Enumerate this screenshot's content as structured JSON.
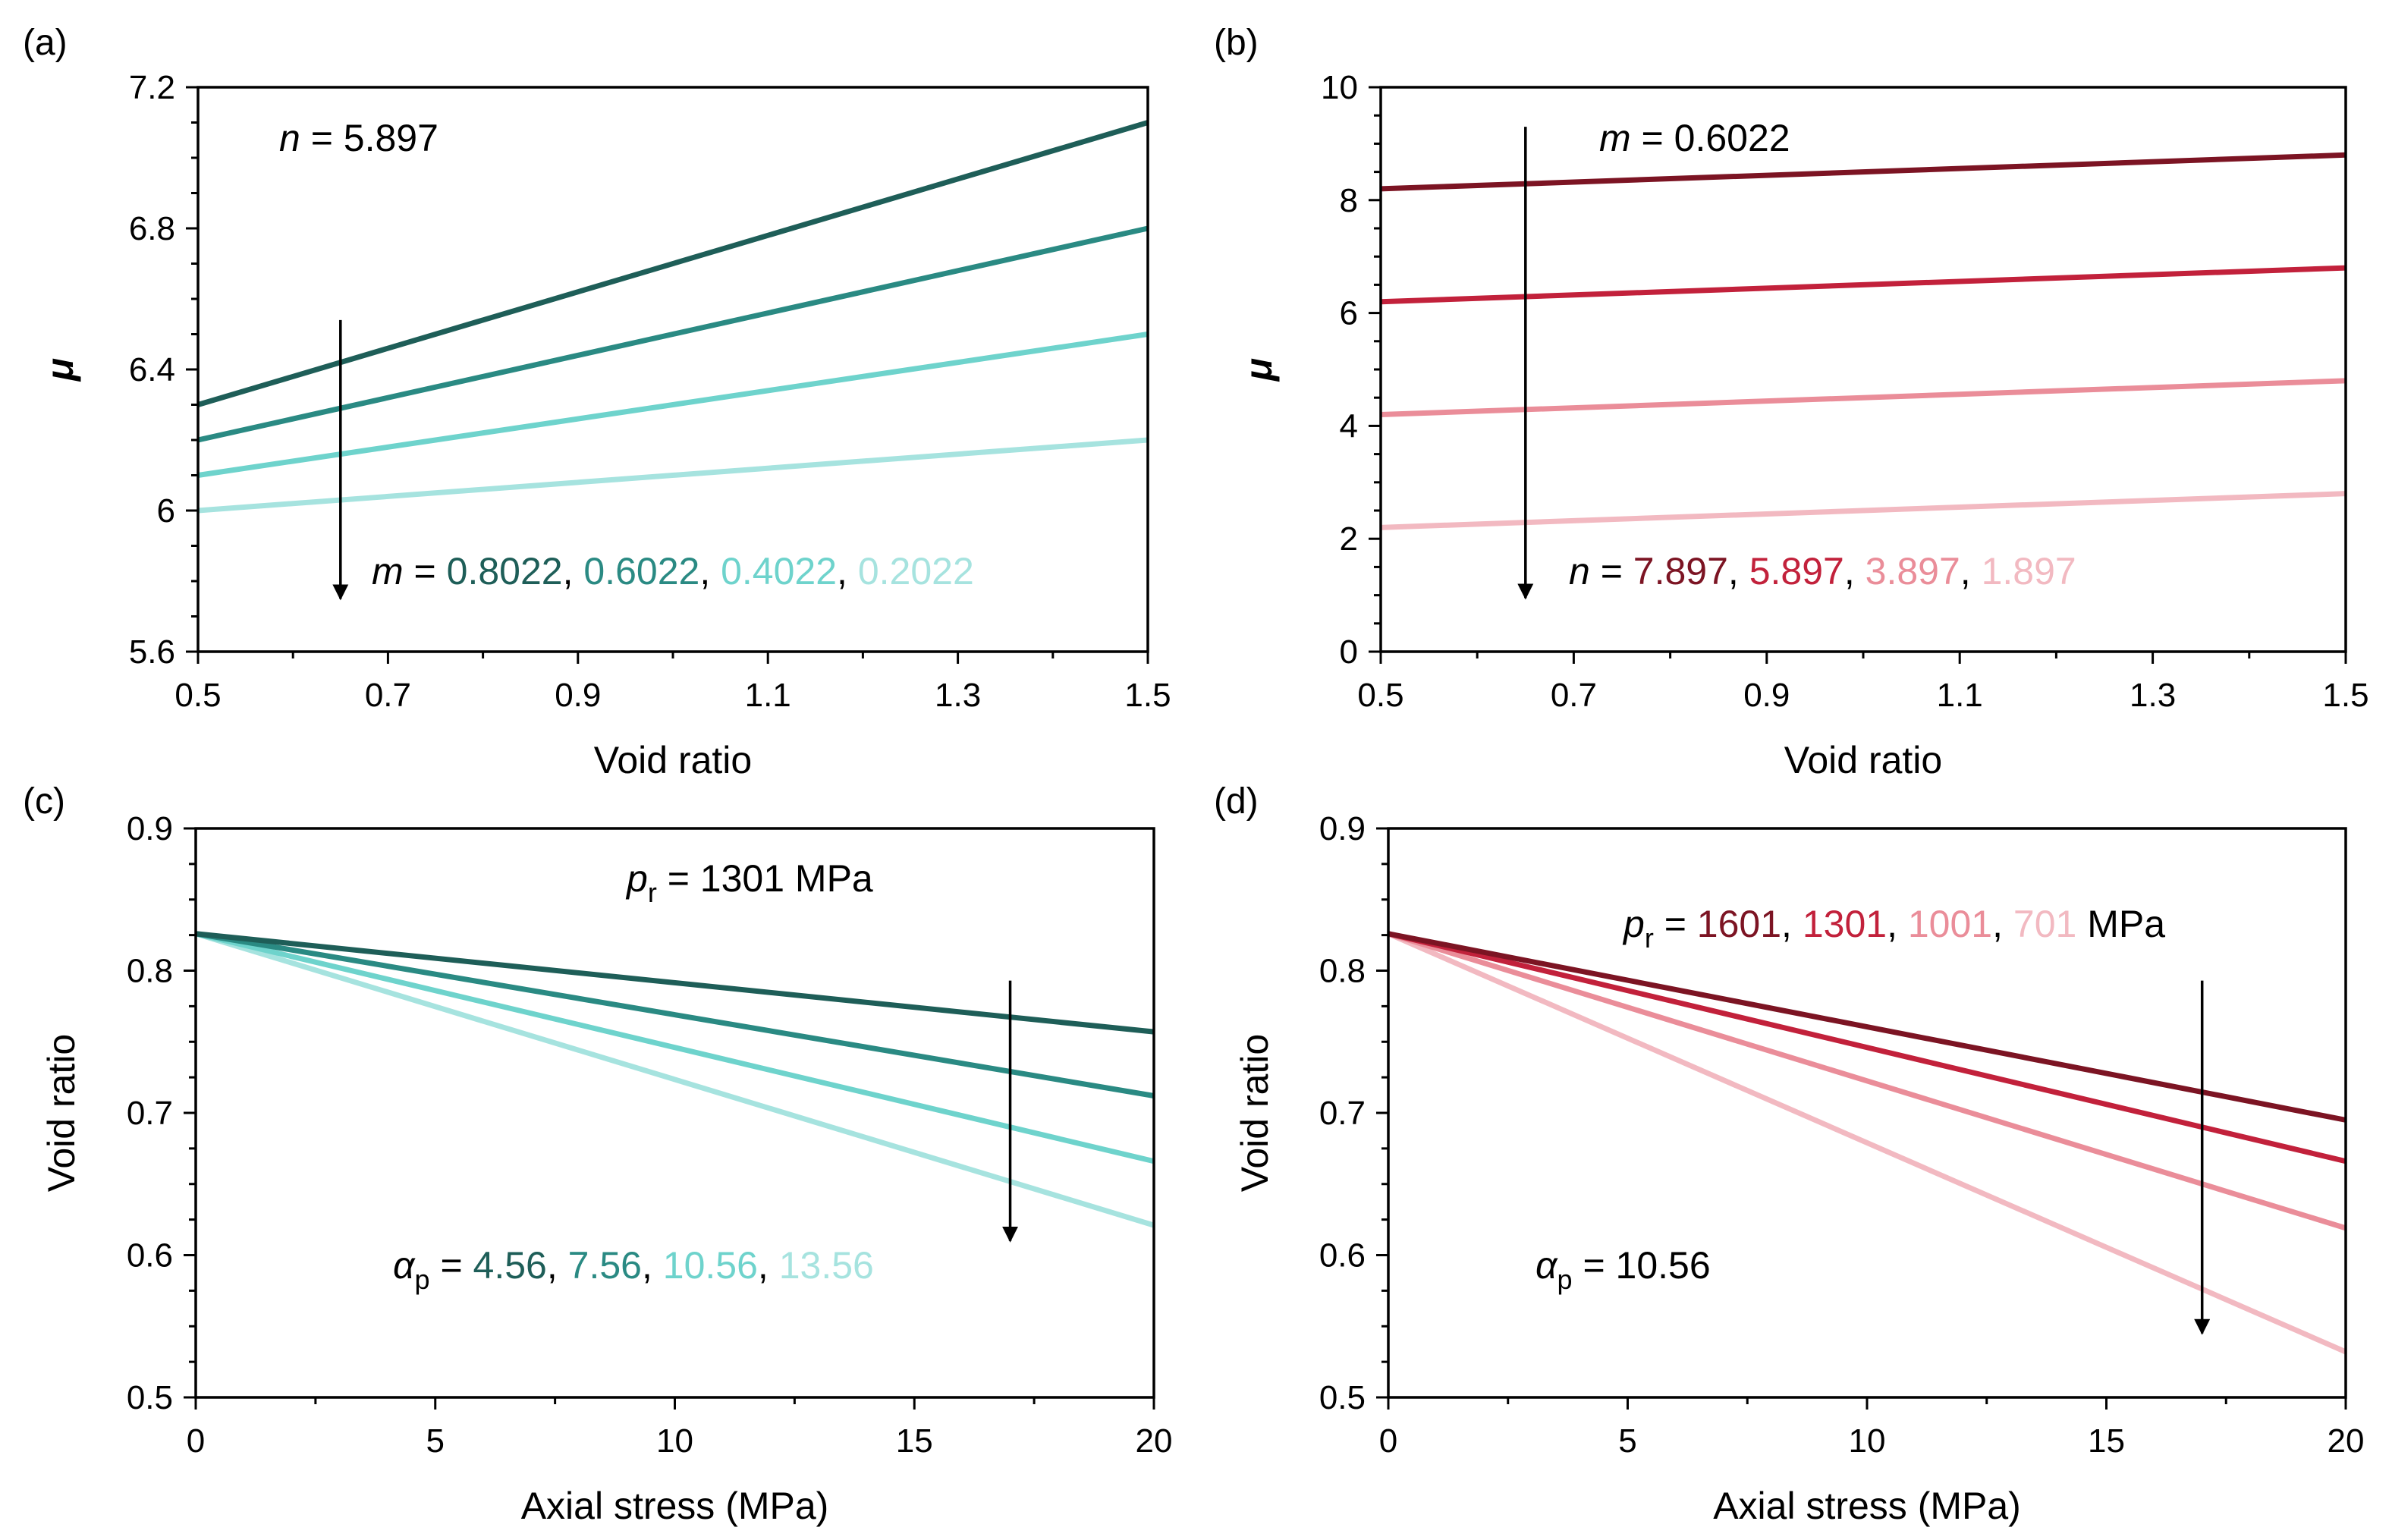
{
  "colors": {
    "teal": [
      "#1e5e58",
      "#2a8a83",
      "#6ed3cc",
      "#a6e3df"
    ],
    "red": [
      "#7c1423",
      "#c2213b",
      "#ea8d99",
      "#f2b9c1"
    ],
    "arrow": "#000000",
    "frame": "#000000"
  },
  "chart_data": [
    {
      "panel_label": "(a)",
      "type": "line",
      "xlabel": "Void ratio",
      "ylabel": "μ",
      "xlim": [
        0.5,
        1.5
      ],
      "ylim": [
        5.6,
        7.2
      ],
      "xticks": [
        0.5,
        0.7,
        0.9,
        1.1,
        1.3,
        1.5
      ],
      "yticks": [
        5.6,
        6,
        6.4,
        6.8,
        7.2
      ],
      "xtick_labels": [
        "0.5",
        "0.7",
        "0.9",
        "1.1",
        "1.3",
        "1.5"
      ],
      "ytick_labels": [
        "5.6",
        "6",
        "6.4",
        "6.8",
        "7.2"
      ],
      "x": [
        0.5,
        1.5
      ],
      "series": [
        {
          "name": "0.8022",
          "values": [
            6.3,
            7.1
          ]
        },
        {
          "name": "0.6022",
          "values": [
            6.2,
            6.8
          ]
        },
        {
          "name": "0.4022",
          "values": [
            6.1,
            6.5
          ]
        },
        {
          "name": "0.2022",
          "values": [
            6.0,
            6.2
          ]
        }
      ],
      "fixed_param": {
        "symbol": "n",
        "equals": " = ",
        "value": "5.897"
      },
      "legend": {
        "symbol": "m",
        "equals": " = ",
        "separator": ", ",
        "unit": ""
      },
      "arrow": {
        "x": 0.65,
        "y_from": 6.54,
        "y_to": 5.75
      }
    },
    {
      "panel_label": "(b)",
      "type": "line",
      "xlabel": "Void ratio",
      "ylabel": "μ",
      "xlim": [
        0.5,
        1.5
      ],
      "ylim": [
        0,
        10
      ],
      "xticks": [
        0.5,
        0.7,
        0.9,
        1.1,
        1.3,
        1.5
      ],
      "yticks": [
        0,
        2,
        4,
        6,
        8,
        10
      ],
      "xtick_labels": [
        "0.5",
        "0.7",
        "0.9",
        "1.1",
        "1.3",
        "1.5"
      ],
      "ytick_labels": [
        "0",
        "2",
        "4",
        "6",
        "8",
        "10"
      ],
      "x": [
        0.5,
        1.5
      ],
      "series": [
        {
          "name": "7.897",
          "values": [
            8.2,
            8.8
          ]
        },
        {
          "name": "5.897",
          "values": [
            6.2,
            6.8
          ]
        },
        {
          "name": "3.897",
          "values": [
            4.2,
            4.8
          ]
        },
        {
          "name": "1.897",
          "values": [
            2.2,
            2.8
          ]
        }
      ],
      "fixed_param": {
        "symbol": "m",
        "equals": " = ",
        "value": "0.6022"
      },
      "legend": {
        "symbol": "n",
        "equals": " = ",
        "separator": ", ",
        "unit": ""
      },
      "arrow": {
        "x": 0.65,
        "y_from": 9.3,
        "y_to": 0.95
      }
    },
    {
      "panel_label": "(c)",
      "type": "line",
      "xlabel": "Axial stress (MPa)",
      "ylabel": "Void ratio",
      "xlim": [
        0,
        20
      ],
      "ylim": [
        0.5,
        0.9
      ],
      "xticks": [
        0,
        5,
        10,
        15,
        20
      ],
      "yticks": [
        0.5,
        0.6,
        0.7,
        0.8,
        0.9
      ],
      "xtick_labels": [
        "0",
        "5",
        "10",
        "15",
        "20"
      ],
      "ytick_labels": [
        "0.5",
        "0.6",
        "0.7",
        "0.8",
        "0.9"
      ],
      "x": [
        0,
        20
      ],
      "series": [
        {
          "name": "4.56",
          "values": [
            0.826,
            0.757
          ]
        },
        {
          "name": "7.56",
          "values": [
            0.826,
            0.712
          ]
        },
        {
          "name": "10.56",
          "values": [
            0.826,
            0.666
          ]
        },
        {
          "name": "13.56",
          "values": [
            0.826,
            0.621
          ]
        }
      ],
      "fixed_param": {
        "symbol": "p",
        "sub": "r",
        "equals": " = ",
        "value": "1301 MPa"
      },
      "legend": {
        "symbol": "α",
        "sub": "p",
        "equals": " = ",
        "separator": ", ",
        "unit": ""
      },
      "arrow": {
        "x": 17,
        "y_from": 0.793,
        "y_to": 0.61
      }
    },
    {
      "panel_label": "(d)",
      "type": "line",
      "xlabel": "Axial stress (MPa)",
      "ylabel": "Void ratio",
      "xlim": [
        0,
        20
      ],
      "ylim": [
        0.5,
        0.9
      ],
      "xticks": [
        0,
        5,
        10,
        15,
        20
      ],
      "yticks": [
        0.5,
        0.6,
        0.7,
        0.8,
        0.9
      ],
      "xtick_labels": [
        "0",
        "5",
        "10",
        "15",
        "20"
      ],
      "ytick_labels": [
        "0.5",
        "0.6",
        "0.7",
        "0.8",
        "0.9"
      ],
      "x": [
        0,
        20
      ],
      "series": [
        {
          "name": "1601",
          "values": [
            0.826,
            0.695
          ]
        },
        {
          "name": "1301",
          "values": [
            0.826,
            0.666
          ]
        },
        {
          "name": "1001",
          "values": [
            0.826,
            0.619
          ]
        },
        {
          "name": "701",
          "values": [
            0.826,
            0.532
          ]
        }
      ],
      "fixed_param": {
        "symbol": "α",
        "sub": "p",
        "equals": " = ",
        "value": "10.56"
      },
      "legend": {
        "symbol": "p",
        "sub": "r",
        "equals": " = ",
        "separator": ", ",
        "unit": " MPa"
      },
      "arrow": {
        "x": 17,
        "y_from": 0.793,
        "y_to": 0.545
      }
    }
  ]
}
